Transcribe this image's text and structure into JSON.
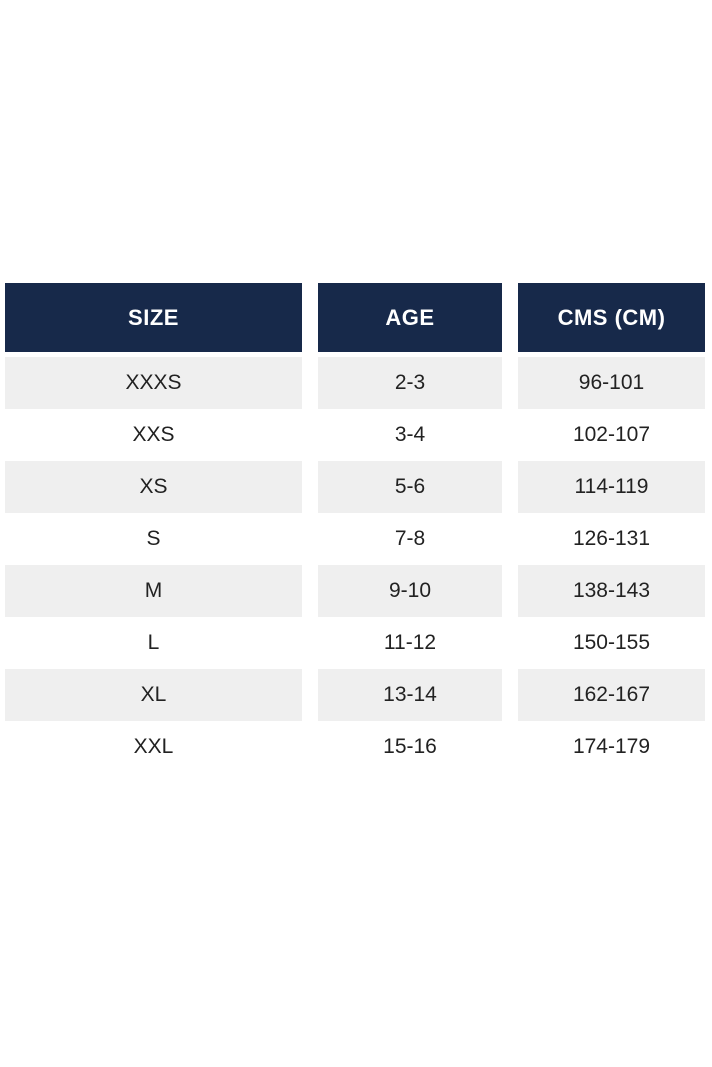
{
  "table": {
    "columns": [
      "SIZE",
      "AGE",
      "CMS (CM)"
    ],
    "rows": [
      [
        "XXXS",
        "2-3",
        "96-101"
      ],
      [
        "XXS",
        "3-4",
        "102-107"
      ],
      [
        "XS",
        "5-6",
        "114-119"
      ],
      [
        "S",
        "7-8",
        "126-131"
      ],
      [
        "M",
        "9-10",
        "138-143"
      ],
      [
        "L",
        "11-12",
        "150-155"
      ],
      [
        "XL",
        "13-14",
        "162-167"
      ],
      [
        "XXL",
        "15-16",
        "174-179"
      ]
    ]
  },
  "colors": {
    "header_bg": "#17294a",
    "header_text": "#ffffff",
    "row_alt_bg": "#efefef",
    "row_bg": "#ffffff",
    "body_text": "#222222",
    "page_bg": "#ffffff"
  }
}
